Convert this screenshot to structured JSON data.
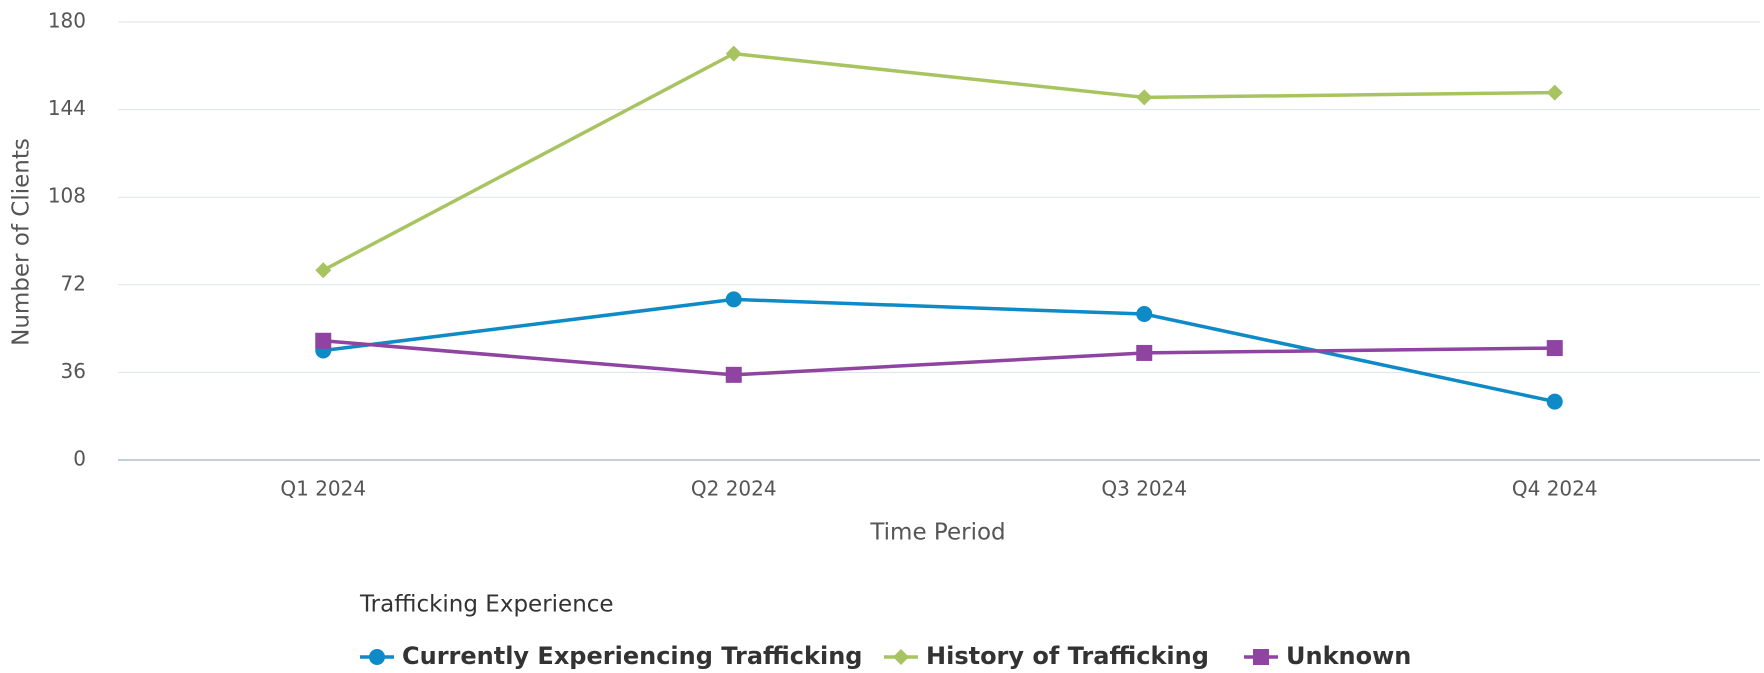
{
  "chart_data": {
    "type": "line",
    "x_label": "Time Period",
    "y_label": "Number of Clients",
    "legend_title": "Trafficking Experience",
    "categories": [
      "Q1 2024",
      "Q2 2024",
      "Q3 2024",
      "Q4 2024"
    ],
    "series": [
      {
        "name": "Currently Experiencing Trafficking",
        "color": "#0e8ac7",
        "marker": "circle",
        "values": [
          45,
          66,
          60,
          24
        ]
      },
      {
        "name": "History of Trafficking",
        "color": "#a8c460",
        "marker": "diamond",
        "values": [
          78,
          167,
          149,
          151
        ]
      },
      {
        "name": "Unknown",
        "color": "#8e44a0",
        "marker": "square",
        "values": [
          49,
          35,
          44,
          46
        ]
      }
    ],
    "ylim": [
      0,
      180
    ],
    "yticks": [
      0,
      36,
      72,
      108,
      144,
      180
    ],
    "grid": true
  }
}
